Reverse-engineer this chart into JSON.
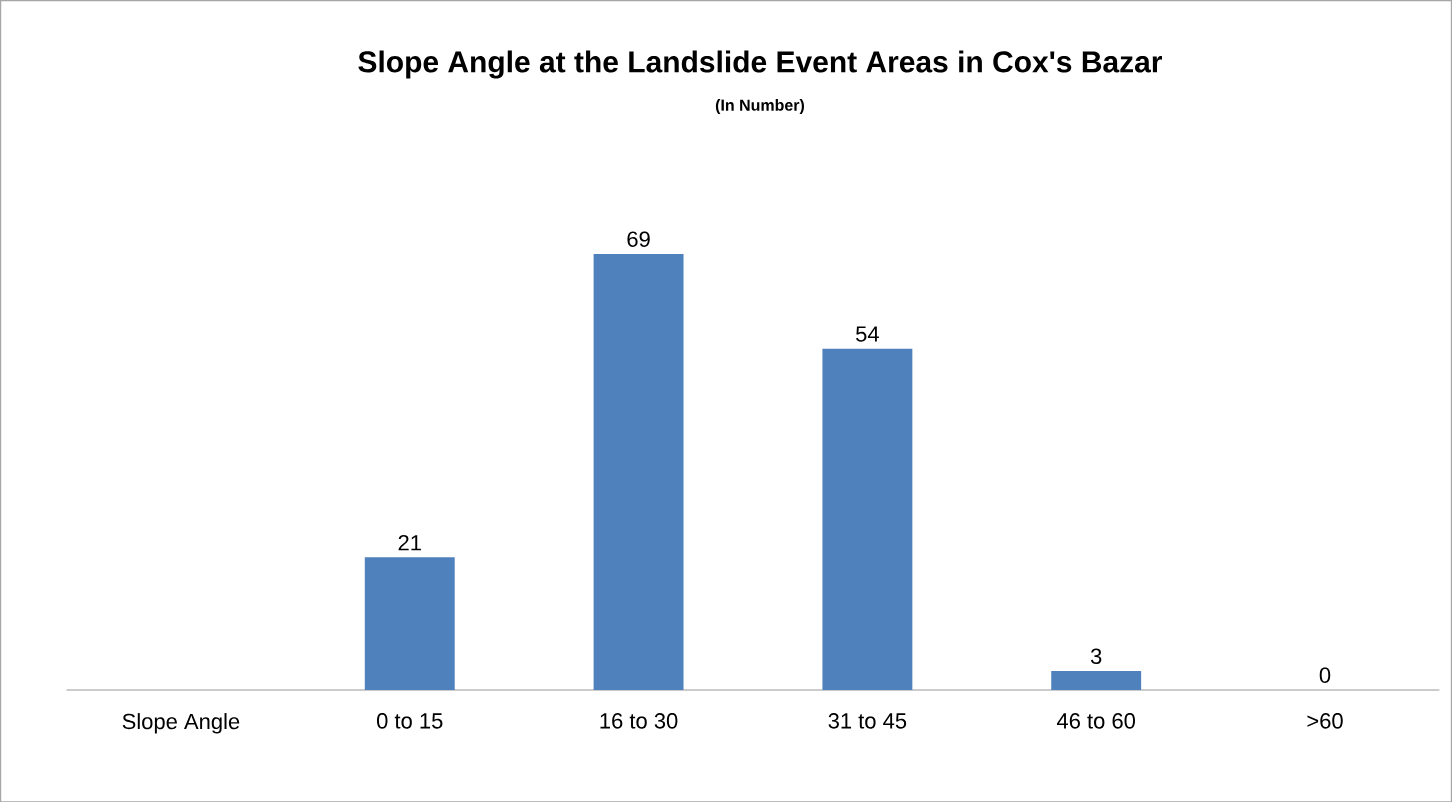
{
  "chart_data": {
    "type": "bar",
    "title": "Slope Angle at the Landslide Event Areas in Cox's Bazar",
    "subtitle": "(In Number)",
    "categories": [
      "Slope Angle",
      "0 to 15",
      "16 to 30",
      "31 to 45",
      "46 to 60",
      ">60"
    ],
    "values": [
      null,
      21,
      69,
      54,
      3,
      0
    ],
    "color": "#4f81bd",
    "data_labels": true
  }
}
